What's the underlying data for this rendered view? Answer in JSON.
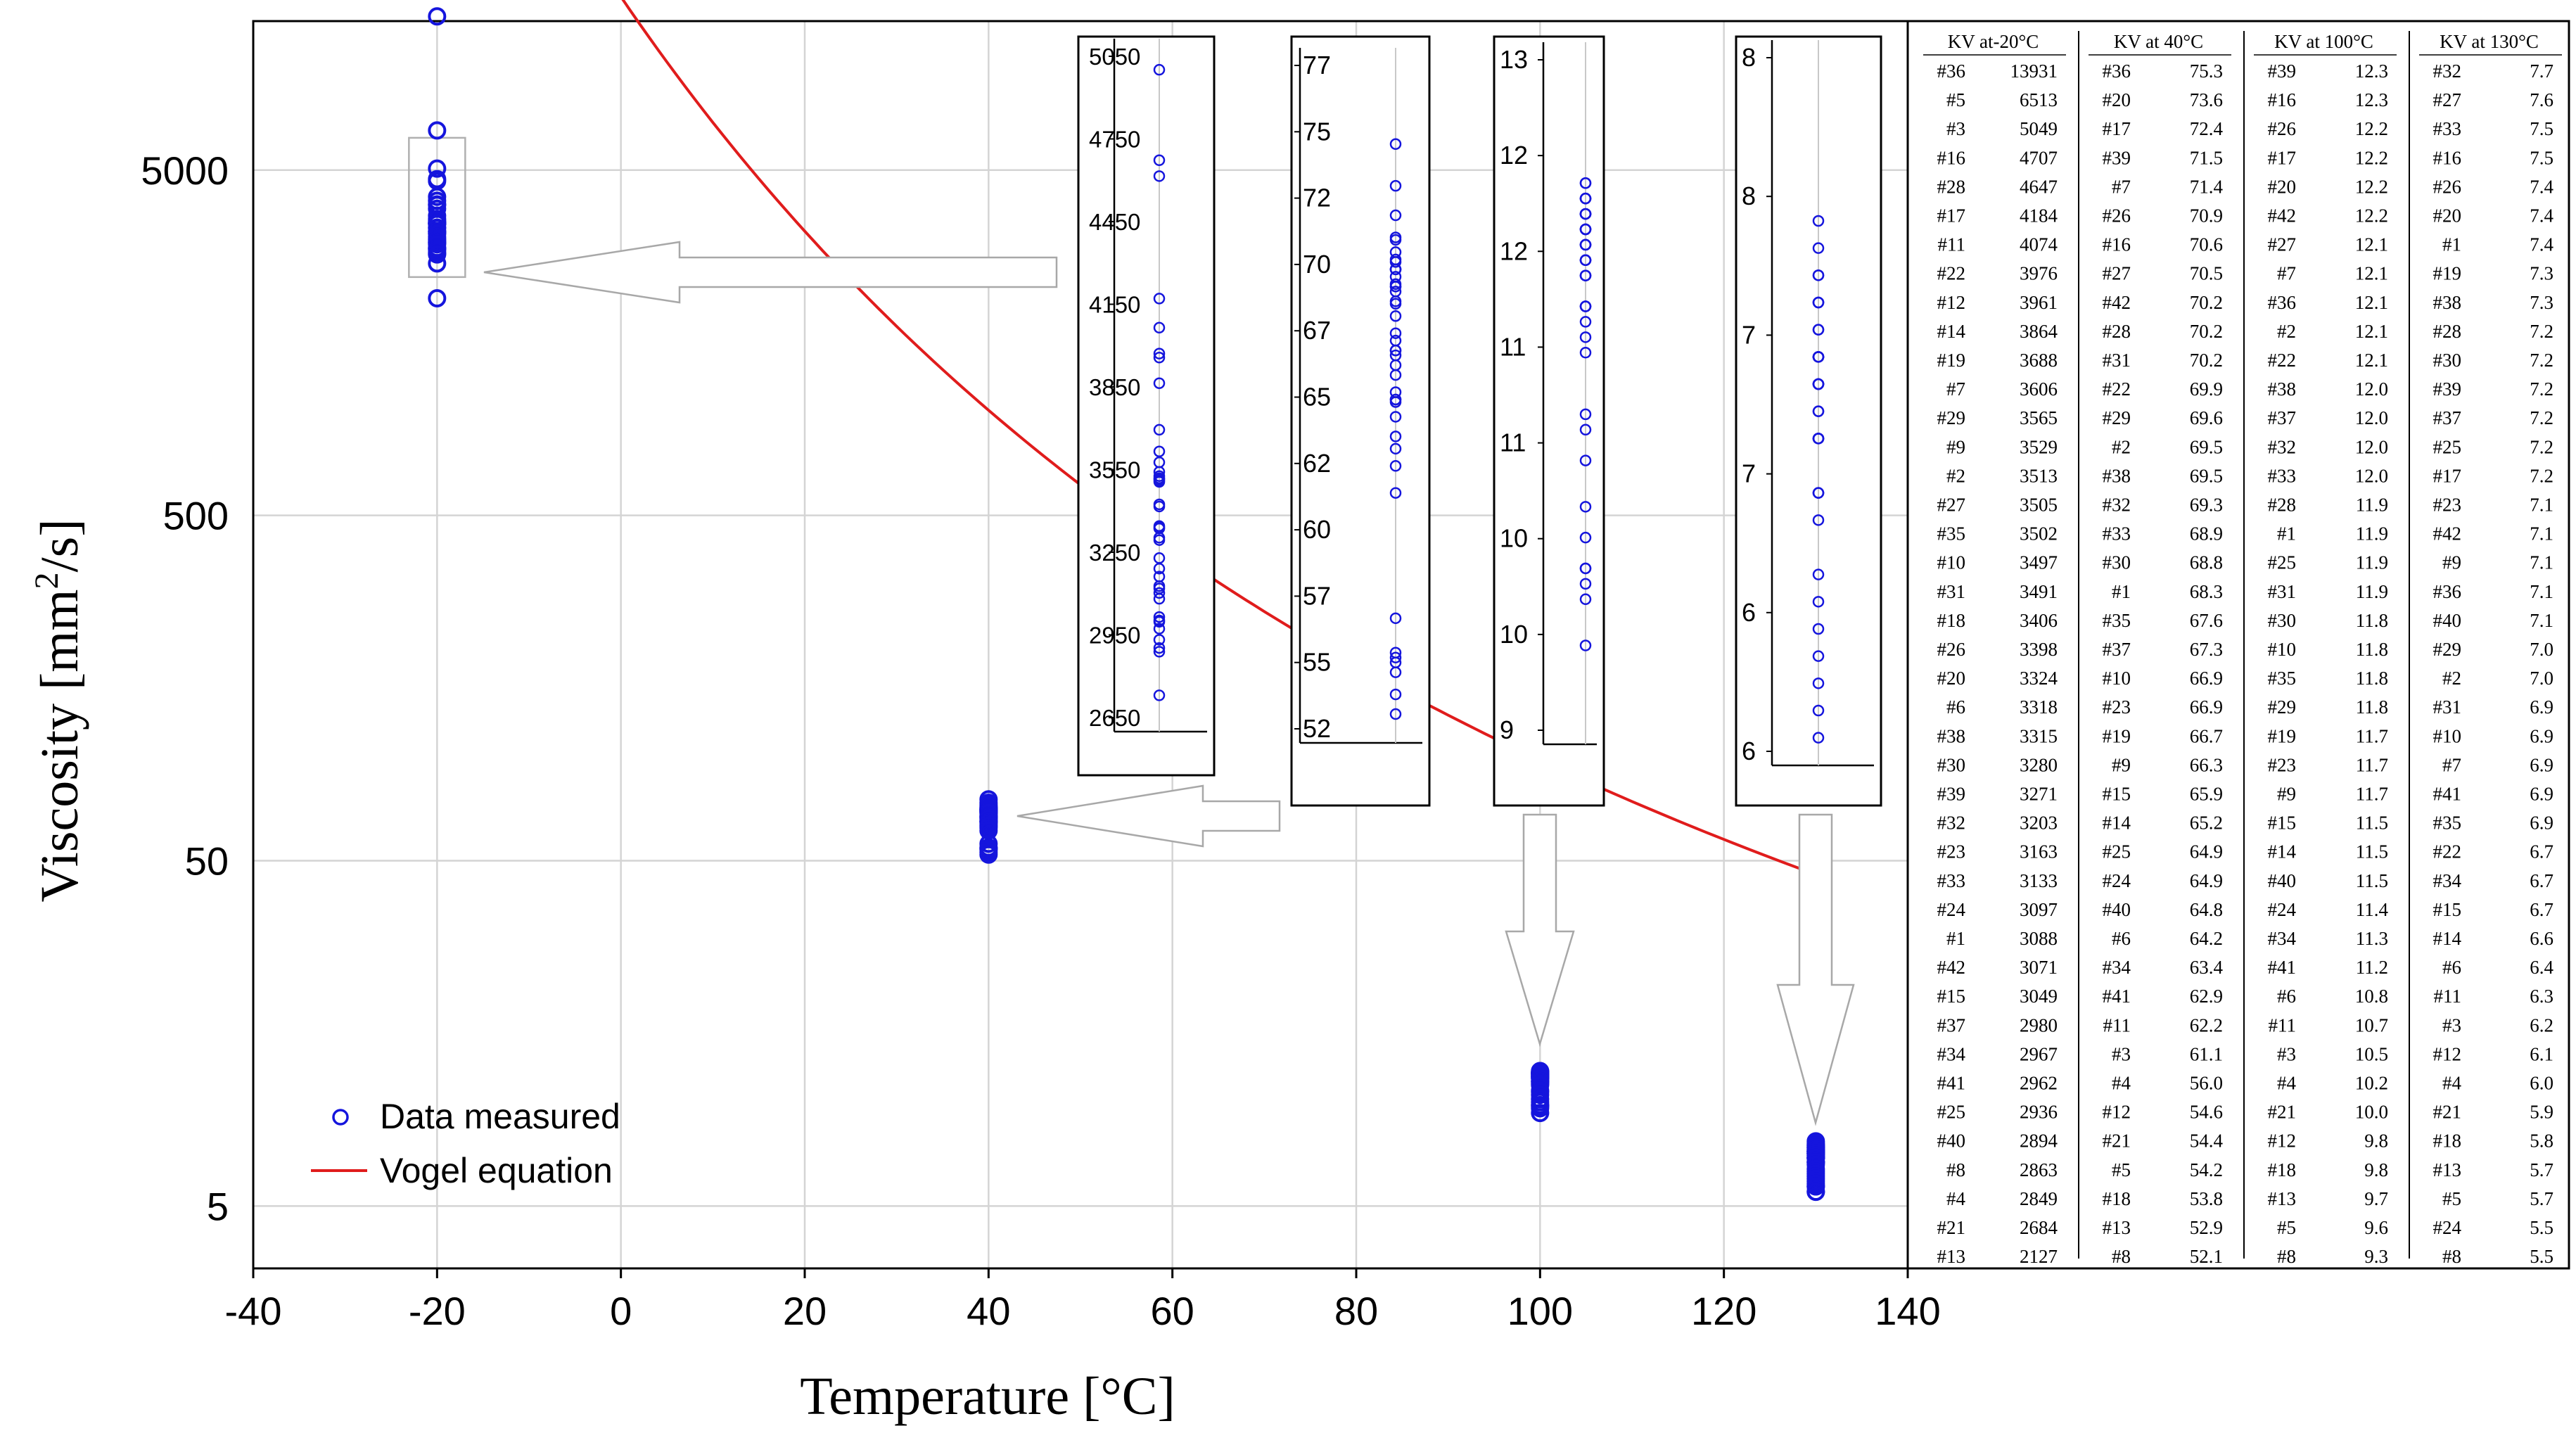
{
  "chart_data": {
    "type": "scatter",
    "xlabel": "Temperature [°C]",
    "ylabel_main": "Viscosity [mm",
    "ylabel_sup": "2",
    "ylabel_tail": "/s]",
    "xlim": [
      -40,
      140
    ],
    "ylim_log": [
      3.3,
      13500
    ],
    "yscale": "log",
    "grid": true,
    "legend_position": "bottom-left",
    "x_ticks": [
      -40,
      -20,
      0,
      20,
      40,
      60,
      80,
      100,
      120,
      140
    ],
    "y_ticks": [
      5,
      50,
      500,
      5000
    ],
    "legend": {
      "points": "Data measured",
      "line": "Vogel equation"
    },
    "colors": {
      "points": "#1515dd",
      "line": "#e01c1c",
      "grid": "#d4d4d4",
      "arrow": "#a8a8a8"
    },
    "vogel_params": {
      "A": -0.8726,
      "B": 657,
      "C": 129.5
    },
    "series": [
      {
        "name": "Data measured",
        "temperature": -20,
        "values": [
          13931,
          6513,
          5049,
          4707,
          4647,
          4184,
          4074,
          3976,
          3961,
          3864,
          3688,
          3606,
          3565,
          3529,
          3513,
          3505,
          3502,
          3497,
          3491,
          3406,
          3398,
          3324,
          3318,
          3315,
          3280,
          3271,
          3203,
          3163,
          3133,
          3097,
          3088,
          3071,
          3049,
          2980,
          2967,
          2962,
          2936,
          2894,
          2863,
          2849,
          2684,
          2127
        ]
      },
      {
        "name": "Data measured",
        "temperature": 40,
        "values": [
          75.3,
          73.6,
          72.4,
          71.5,
          71.4,
          70.9,
          70.6,
          70.5,
          70.2,
          70.2,
          70.2,
          69.9,
          69.6,
          69.5,
          69.5,
          69.3,
          68.9,
          68.8,
          68.3,
          67.6,
          67.3,
          66.9,
          66.9,
          66.7,
          66.3,
          65.9,
          65.2,
          64.9,
          64.9,
          64.8,
          64.2,
          63.4,
          62.9,
          62.2,
          61.1,
          56.0,
          54.6,
          54.4,
          54.2,
          53.8,
          52.9,
          52.1
        ]
      },
      {
        "name": "Data measured",
        "temperature": 100,
        "values": [
          12.3,
          12.3,
          12.2,
          12.2,
          12.2,
          12.2,
          12.1,
          12.1,
          12.1,
          12.1,
          12.1,
          12.0,
          12.0,
          12.0,
          12.0,
          11.9,
          11.9,
          11.9,
          11.9,
          11.8,
          11.8,
          11.8,
          11.8,
          11.7,
          11.7,
          11.7,
          11.5,
          11.5,
          11.5,
          11.4,
          11.3,
          11.2,
          10.8,
          10.7,
          10.5,
          10.2,
          10.0,
          9.8,
          9.8,
          9.7,
          9.6,
          9.3
        ]
      },
      {
        "name": "Data measured",
        "temperature": 130,
        "values": [
          7.7,
          7.6,
          7.5,
          7.5,
          7.4,
          7.4,
          7.4,
          7.3,
          7.3,
          7.2,
          7.2,
          7.2,
          7.2,
          7.2,
          7.2,
          7.1,
          7.1,
          7.1,
          7.1,
          7.1,
          7.0,
          7.0,
          6.9,
          6.9,
          6.9,
          6.9,
          6.9,
          6.7,
          6.7,
          6.7,
          6.6,
          6.4,
          6.3,
          6.2,
          6.1,
          6.0,
          5.9,
          5.8,
          5.7,
          5.7,
          5.5,
          5.5
        ]
      }
    ],
    "insets": [
      {
        "id": "inset-20",
        "ticks": [
          "5050",
          "4750",
          "4450",
          "4150",
          "3850",
          "3550",
          "3250",
          "2950",
          "2650"
        ],
        "range": [
          2600,
          5100
        ],
        "values_ref": 0
      },
      {
        "id": "inset40",
        "ticks": [
          "77",
          "75",
          "72",
          "70",
          "67",
          "65",
          "62",
          "60",
          "57",
          "55",
          "52"
        ],
        "range": [
          51.5,
          78.5
        ],
        "values_ref": 1
      },
      {
        "id": "inset100",
        "ticks": [
          "13",
          "12",
          "12",
          "11",
          "11",
          "10",
          "10",
          "9"
        ],
        "range": [
          8.75,
          13.1
        ],
        "values_ref": 2
      },
      {
        "id": "inset130",
        "ticks": [
          "8",
          "8",
          "7",
          "7",
          "6",
          "6"
        ],
        "range": [
          5.75,
          8.3
        ],
        "values_ref": 3
      }
    ]
  },
  "table": {
    "headers": [
      "KV at-20°C",
      "KV at 40°C",
      "KV at 100°C",
      "KV at 130°C"
    ],
    "rows": [
      [
        "#36",
        "13931",
        "#36",
        "75.3",
        "#39",
        "12.3",
        "#32",
        "7.7"
      ],
      [
        "#5",
        "6513",
        "#20",
        "73.6",
        "#16",
        "12.3",
        "#27",
        "7.6"
      ],
      [
        "#3",
        "5049",
        "#17",
        "72.4",
        "#26",
        "12.2",
        "#33",
        "7.5"
      ],
      [
        "#16",
        "4707",
        "#39",
        "71.5",
        "#17",
        "12.2",
        "#16",
        "7.5"
      ],
      [
        "#28",
        "4647",
        "#7",
        "71.4",
        "#20",
        "12.2",
        "#26",
        "7.4"
      ],
      [
        "#17",
        "4184",
        "#26",
        "70.9",
        "#42",
        "12.2",
        "#20",
        "7.4"
      ],
      [
        "#11",
        "4074",
        "#16",
        "70.6",
        "#27",
        "12.1",
        "#1",
        "7.4"
      ],
      [
        "#22",
        "3976",
        "#27",
        "70.5",
        "#7",
        "12.1",
        "#19",
        "7.3"
      ],
      [
        "#12",
        "3961",
        "#42",
        "70.2",
        "#36",
        "12.1",
        "#38",
        "7.3"
      ],
      [
        "#14",
        "3864",
        "#28",
        "70.2",
        "#2",
        "12.1",
        "#28",
        "7.2"
      ],
      [
        "#19",
        "3688",
        "#31",
        "70.2",
        "#22",
        "12.1",
        "#30",
        "7.2"
      ],
      [
        "#7",
        "3606",
        "#22",
        "69.9",
        "#38",
        "12.0",
        "#39",
        "7.2"
      ],
      [
        "#29",
        "3565",
        "#29",
        "69.6",
        "#37",
        "12.0",
        "#37",
        "7.2"
      ],
      [
        "#9",
        "3529",
        "#2",
        "69.5",
        "#32",
        "12.0",
        "#25",
        "7.2"
      ],
      [
        "#2",
        "3513",
        "#38",
        "69.5",
        "#33",
        "12.0",
        "#17",
        "7.2"
      ],
      [
        "#27",
        "3505",
        "#32",
        "69.3",
        "#28",
        "11.9",
        "#23",
        "7.1"
      ],
      [
        "#35",
        "3502",
        "#33",
        "68.9",
        "#1",
        "11.9",
        "#42",
        "7.1"
      ],
      [
        "#10",
        "3497",
        "#30",
        "68.8",
        "#25",
        "11.9",
        "#9",
        "7.1"
      ],
      [
        "#31",
        "3491",
        "#1",
        "68.3",
        "#31",
        "11.9",
        "#36",
        "7.1"
      ],
      [
        "#18",
        "3406",
        "#35",
        "67.6",
        "#30",
        "11.8",
        "#40",
        "7.1"
      ],
      [
        "#26",
        "3398",
        "#37",
        "67.3",
        "#10",
        "11.8",
        "#29",
        "7.0"
      ],
      [
        "#20",
        "3324",
        "#10",
        "66.9",
        "#35",
        "11.8",
        "#2",
        "7.0"
      ],
      [
        "#6",
        "3318",
        "#23",
        "66.9",
        "#29",
        "11.8",
        "#31",
        "6.9"
      ],
      [
        "#38",
        "3315",
        "#19",
        "66.7",
        "#19",
        "11.7",
        "#10",
        "6.9"
      ],
      [
        "#30",
        "3280",
        "#9",
        "66.3",
        "#23",
        "11.7",
        "#7",
        "6.9"
      ],
      [
        "#39",
        "3271",
        "#15",
        "65.9",
        "#9",
        "11.7",
        "#41",
        "6.9"
      ],
      [
        "#32",
        "3203",
        "#14",
        "65.2",
        "#15",
        "11.5",
        "#35",
        "6.9"
      ],
      [
        "#23",
        "3163",
        "#25",
        "64.9",
        "#14",
        "11.5",
        "#22",
        "6.7"
      ],
      [
        "#33",
        "3133",
        "#24",
        "64.9",
        "#40",
        "11.5",
        "#34",
        "6.7"
      ],
      [
        "#24",
        "3097",
        "#40",
        "64.8",
        "#24",
        "11.4",
        "#15",
        "6.7"
      ],
      [
        "#1",
        "3088",
        "#6",
        "64.2",
        "#34",
        "11.3",
        "#14",
        "6.6"
      ],
      [
        "#42",
        "3071",
        "#34",
        "63.4",
        "#41",
        "11.2",
        "#6",
        "6.4"
      ],
      [
        "#15",
        "3049",
        "#41",
        "62.9",
        "#6",
        "10.8",
        "#11",
        "6.3"
      ],
      [
        "#37",
        "2980",
        "#11",
        "62.2",
        "#11",
        "10.7",
        "#3",
        "6.2"
      ],
      [
        "#34",
        "2967",
        "#3",
        "61.1",
        "#3",
        "10.5",
        "#12",
        "6.1"
      ],
      [
        "#41",
        "2962",
        "#4",
        "56.0",
        "#4",
        "10.2",
        "#4",
        "6.0"
      ],
      [
        "#25",
        "2936",
        "#12",
        "54.6",
        "#21",
        "10.0",
        "#21",
        "5.9"
      ],
      [
        "#40",
        "2894",
        "#21",
        "54.4",
        "#12",
        "9.8",
        "#18",
        "5.8"
      ],
      [
        "#8",
        "2863",
        "#5",
        "54.2",
        "#18",
        "9.8",
        "#13",
        "5.7"
      ],
      [
        "#4",
        "2849",
        "#18",
        "53.8",
        "#13",
        "9.7",
        "#5",
        "5.7"
      ],
      [
        "#21",
        "2684",
        "#13",
        "52.9",
        "#5",
        "9.6",
        "#24",
        "5.5"
      ],
      [
        "#13",
        "2127",
        "#8",
        "52.1",
        "#8",
        "9.3",
        "#8",
        "5.5"
      ]
    ]
  }
}
